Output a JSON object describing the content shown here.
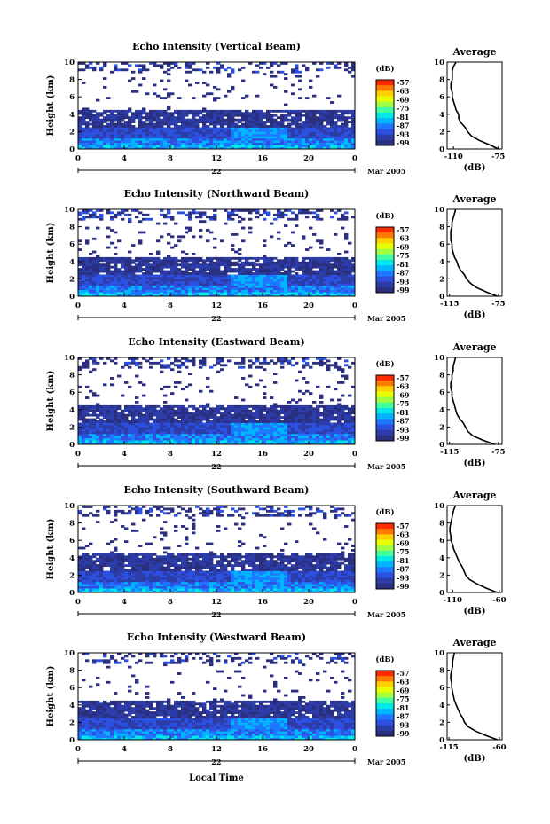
{
  "figure": {
    "xlabel": "Local Time",
    "colorbar_unit": "(dB)",
    "colorbar_ticks": [
      "-57",
      "-63",
      "-69",
      "-75",
      "-81",
      "-87",
      "-93",
      "-99"
    ],
    "colorbar_colors": [
      "#ff2a00",
      "#ff7a00",
      "#ffd000",
      "#e8ff00",
      "#a0ff40",
      "#40ffa0",
      "#00e8e8",
      "#00b4ff",
      "#1e78ff",
      "#2c50e0",
      "#2c3ca8",
      "#2b2f80"
    ],
    "date_label": "Mar 2005",
    "day_label": "22",
    "profile_title": "Average",
    "profile_xlabel": "(dB)",
    "ylabel": "Height (km)"
  },
  "chart_data": [
    {
      "type": "heatmap",
      "title": "Echo Intensity (Vertical Beam)",
      "xlim": [
        0,
        24
      ],
      "ylim": [
        0,
        10
      ],
      "x_ticks": [
        "0",
        "4",
        "8",
        "12",
        "16",
        "20",
        "0"
      ],
      "y_ticks": [
        "0",
        "2",
        "4",
        "6",
        "8",
        "10"
      ],
      "profile": {
        "xtick_labels": [
          "-110",
          "-75"
        ],
        "xlim": [
          -115,
          -72
        ],
        "heights": [
          0,
          0.5,
          1,
          1.5,
          2,
          2.5,
          3,
          3.5,
          4,
          4.5,
          5,
          5.5,
          6,
          6.5,
          7,
          7.5,
          8,
          8.5,
          9,
          9.5,
          10
        ],
        "values": [
          -75,
          -82,
          -90,
          -96,
          -99,
          -101,
          -104,
          -106,
          -106,
          -108,
          -109,
          -110,
          -111,
          -111,
          -112,
          -112,
          -111,
          -111,
          -111,
          -110,
          -108
        ]
      }
    },
    {
      "type": "heatmap",
      "title": "Echo Intensity (Northward Beam)",
      "xlim": [
        0,
        24
      ],
      "ylim": [
        0,
        10
      ],
      "x_ticks": [
        "0",
        "4",
        "8",
        "12",
        "16",
        "20",
        "0"
      ],
      "y_ticks": [
        "0",
        "2",
        "4",
        "6",
        "8",
        "10"
      ],
      "profile": {
        "xtick_labels": [
          "-115",
          "-75"
        ],
        "xlim": [
          -117,
          -72
        ],
        "heights": [
          0,
          0.5,
          1,
          1.5,
          2,
          2.5,
          3,
          3.5,
          4,
          4.5,
          5,
          5.5,
          6,
          6.5,
          7,
          7.5,
          8,
          8.5,
          9,
          9.5,
          10
        ],
        "values": [
          -76,
          -85,
          -93,
          -98,
          -101,
          -103,
          -106,
          -108,
          -109,
          -111,
          -112,
          -113,
          -113,
          -114,
          -114,
          -114,
          -113,
          -113,
          -112,
          -111,
          -110
        ]
      }
    },
    {
      "type": "heatmap",
      "title": "Echo Intensity (Eastward Beam)",
      "xlim": [
        0,
        24
      ],
      "ylim": [
        0,
        10
      ],
      "x_ticks": [
        "0",
        "4",
        "8",
        "12",
        "16",
        "20",
        "0"
      ],
      "y_ticks": [
        "0",
        "2",
        "4",
        "6",
        "8",
        "10"
      ],
      "profile": {
        "xtick_labels": [
          "-115",
          "-75"
        ],
        "xlim": [
          -117,
          -72
        ],
        "heights": [
          0,
          0.5,
          1,
          1.5,
          2,
          2.5,
          3,
          3.5,
          4,
          4.5,
          5,
          5.5,
          6,
          6.5,
          7,
          7.5,
          8,
          8.5,
          9,
          9.5,
          10
        ],
        "values": [
          -78,
          -88,
          -96,
          -100,
          -102,
          -104,
          -107,
          -109,
          -110,
          -111,
          -112,
          -113,
          -113,
          -114,
          -114,
          -113,
          -113,
          -112,
          -112,
          -111,
          -110
        ]
      }
    },
    {
      "type": "heatmap",
      "title": "Echo Intensity (Southward Beam)",
      "xlim": [
        0,
        24
      ],
      "ylim": [
        0,
        10
      ],
      "x_ticks": [
        "0",
        "4",
        "8",
        "12",
        "16",
        "20",
        "0"
      ],
      "y_ticks": [
        "0",
        "2",
        "4",
        "6",
        "8",
        "10"
      ],
      "profile": {
        "xtick_labels": [
          "-110",
          "-60"
        ],
        "xlim": [
          -116,
          -57
        ],
        "heights": [
          0,
          0.5,
          1,
          1.5,
          2,
          2.5,
          3,
          3.5,
          4,
          4.5,
          5,
          5.5,
          6,
          6.5,
          7,
          7.5,
          8,
          8.5,
          9,
          9.5,
          10
        ],
        "values": [
          -62,
          -74,
          -84,
          -92,
          -96,
          -98,
          -100,
          -103,
          -105,
          -107,
          -109,
          -110,
          -112,
          -112,
          -113,
          -113,
          -112,
          -111,
          -110,
          -109,
          -107
        ]
      }
    },
    {
      "type": "heatmap",
      "title": "Echo Intensity (Westward Beam)",
      "xlim": [
        0,
        24
      ],
      "ylim": [
        0,
        10
      ],
      "x_ticks": [
        "0",
        "4",
        "8",
        "12",
        "16",
        "20",
        "0"
      ],
      "y_ticks": [
        "0",
        "2",
        "4",
        "6",
        "8",
        "10"
      ],
      "profile": {
        "xtick_labels": [
          "-115",
          "-60"
        ],
        "xlim": [
          -117,
          -57
        ],
        "heights": [
          0,
          0.5,
          1,
          1.5,
          2,
          2.5,
          3,
          3.5,
          4,
          4.5,
          5,
          5.5,
          6,
          6.5,
          7,
          7.5,
          8,
          8.5,
          9,
          9.5,
          10
        ],
        "values": [
          -62,
          -75,
          -86,
          -94,
          -98,
          -100,
          -103,
          -105,
          -107,
          -109,
          -110,
          -111,
          -112,
          -112,
          -113,
          -113,
          -112,
          -111,
          -111,
          -110,
          -109
        ]
      }
    }
  ]
}
